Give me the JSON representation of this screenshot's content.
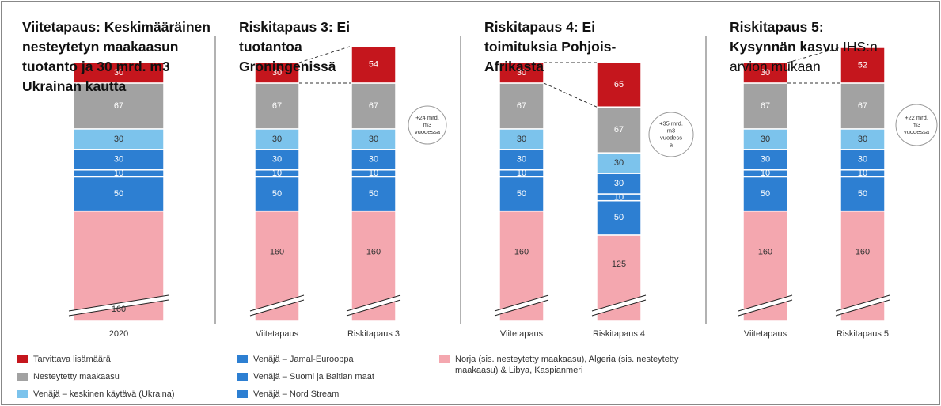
{
  "chart_data": [
    {
      "type": "bar",
      "title": "Viitetapaus: Keskimääräinen nesteytetyn maakaasun tuotanto ja 30 mrd. m3 Ukrainan kautta",
      "categories": [
        "2020"
      ],
      "ylim": [
        80,
        420
      ],
      "axis_break": true,
      "series": [
        {
          "values": [
            30
          ]
        },
        {
          "values": [
            67
          ]
        },
        {
          "values": [
            30
          ]
        },
        {
          "values": [
            30
          ]
        },
        {
          "values": [
            10
          ]
        },
        {
          "values": [
            50
          ]
        },
        {
          "values": [
            160
          ]
        }
      ]
    },
    {
      "type": "bar",
      "title": "Riskitapaus 3: Ei tuotantoa Groningenissä",
      "categories": [
        "Viitetapaus",
        "Riskitapaus 3"
      ],
      "ylim": [
        80,
        420
      ],
      "axis_break": true,
      "annotation": "+24 mrd. m3 vuodessa",
      "series": [
        {
          "values": [
            30,
            54
          ]
        },
        {
          "values": [
            67,
            67
          ]
        },
        {
          "values": [
            30,
            30
          ]
        },
        {
          "values": [
            30,
            30
          ]
        },
        {
          "values": [
            10,
            10
          ]
        },
        {
          "values": [
            50,
            50
          ]
        },
        {
          "values": [
            160,
            160
          ]
        }
      ]
    },
    {
      "type": "bar",
      "title": "Riskitapaus 4: Ei toimituksia Pohjois-Afrikasta",
      "categories": [
        "Viitetapaus",
        "Riskitapaus 4"
      ],
      "ylim": [
        80,
        420
      ],
      "axis_break": true,
      "annotation": "+35 mrd. m3 vuodess a",
      "series": [
        {
          "values": [
            30,
            65
          ]
        },
        {
          "values": [
            67,
            67
          ]
        },
        {
          "values": [
            30,
            30
          ]
        },
        {
          "values": [
            30,
            30
          ]
        },
        {
          "values": [
            10,
            10
          ]
        },
        {
          "values": [
            50,
            50
          ]
        },
        {
          "values": [
            160,
            125
          ]
        }
      ]
    },
    {
      "type": "bar",
      "title": "Riskitapaus 5: Kysynnän kasvu",
      "subtitle": "IHS:n arvion mukaan",
      "categories": [
        "Viitetapaus",
        "Riskitapaus 5"
      ],
      "ylim": [
        80,
        420
      ],
      "axis_break": true,
      "annotation": "+22 mrd. m3 vuodessa",
      "series": [
        {
          "values": [
            30,
            52
          ]
        },
        {
          "values": [
            67,
            67
          ]
        },
        {
          "values": [
            30,
            30
          ]
        },
        {
          "values": [
            30,
            30
          ]
        },
        {
          "values": [
            10,
            10
          ]
        },
        {
          "values": [
            50,
            50
          ]
        },
        {
          "values": [
            160,
            160
          ]
        }
      ]
    }
  ],
  "legend": [
    {
      "name": "Tarvittava lisämäärä",
      "color": "#c5161d"
    },
    {
      "name": "Nesteytetty maakaasu",
      "color": "#a2a2a2"
    },
    {
      "name": "Venäjä – keskinen käytävä (Ukraina)",
      "color": "#7cc3ec"
    },
    {
      "name": "Venäjä – Jamal-Eurooppa",
      "color": "#2d7fd2"
    },
    {
      "name": "Venäjä – Suomi ja Baltian maat",
      "color": "#2d7fd2"
    },
    {
      "name": "Venäjä – Nord Stream",
      "color": "#2d7fd2"
    },
    {
      "name": "Norja (sis. nesteytetty maakaasu), Algeria (sis. nesteytetty maakaasu) & Libya, Kaspianmeri",
      "color": "#f4a7af"
    }
  ]
}
